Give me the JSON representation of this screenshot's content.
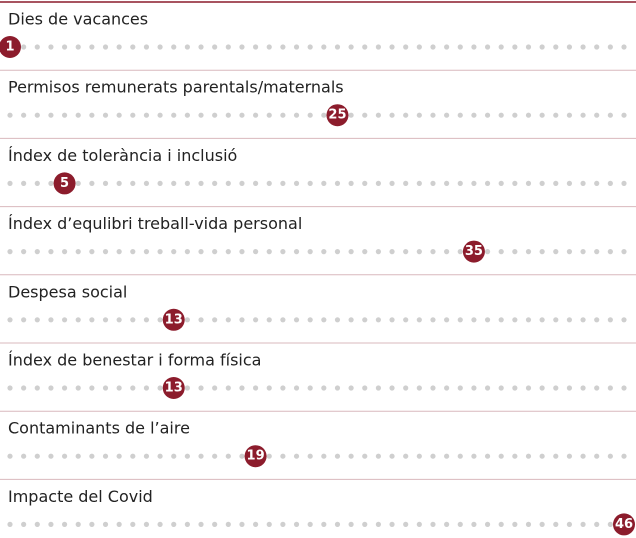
{
  "chart_data": {
    "type": "rank-dots",
    "categories": [
      "Dies de vacances",
      "Permisos remunerats parentals/maternals",
      "Índex de tolerància i inclusió",
      "Índex d’equlibri treball-vida personal",
      "Despesa social",
      "Índex de benestar i forma física",
      "Contaminants de l’aire",
      "Impacte del Covid"
    ],
    "values": [
      1,
      25,
      5,
      35,
      13,
      13,
      19,
      46
    ],
    "xlim": [
      1,
      46
    ],
    "color": "#8c1c2c"
  }
}
